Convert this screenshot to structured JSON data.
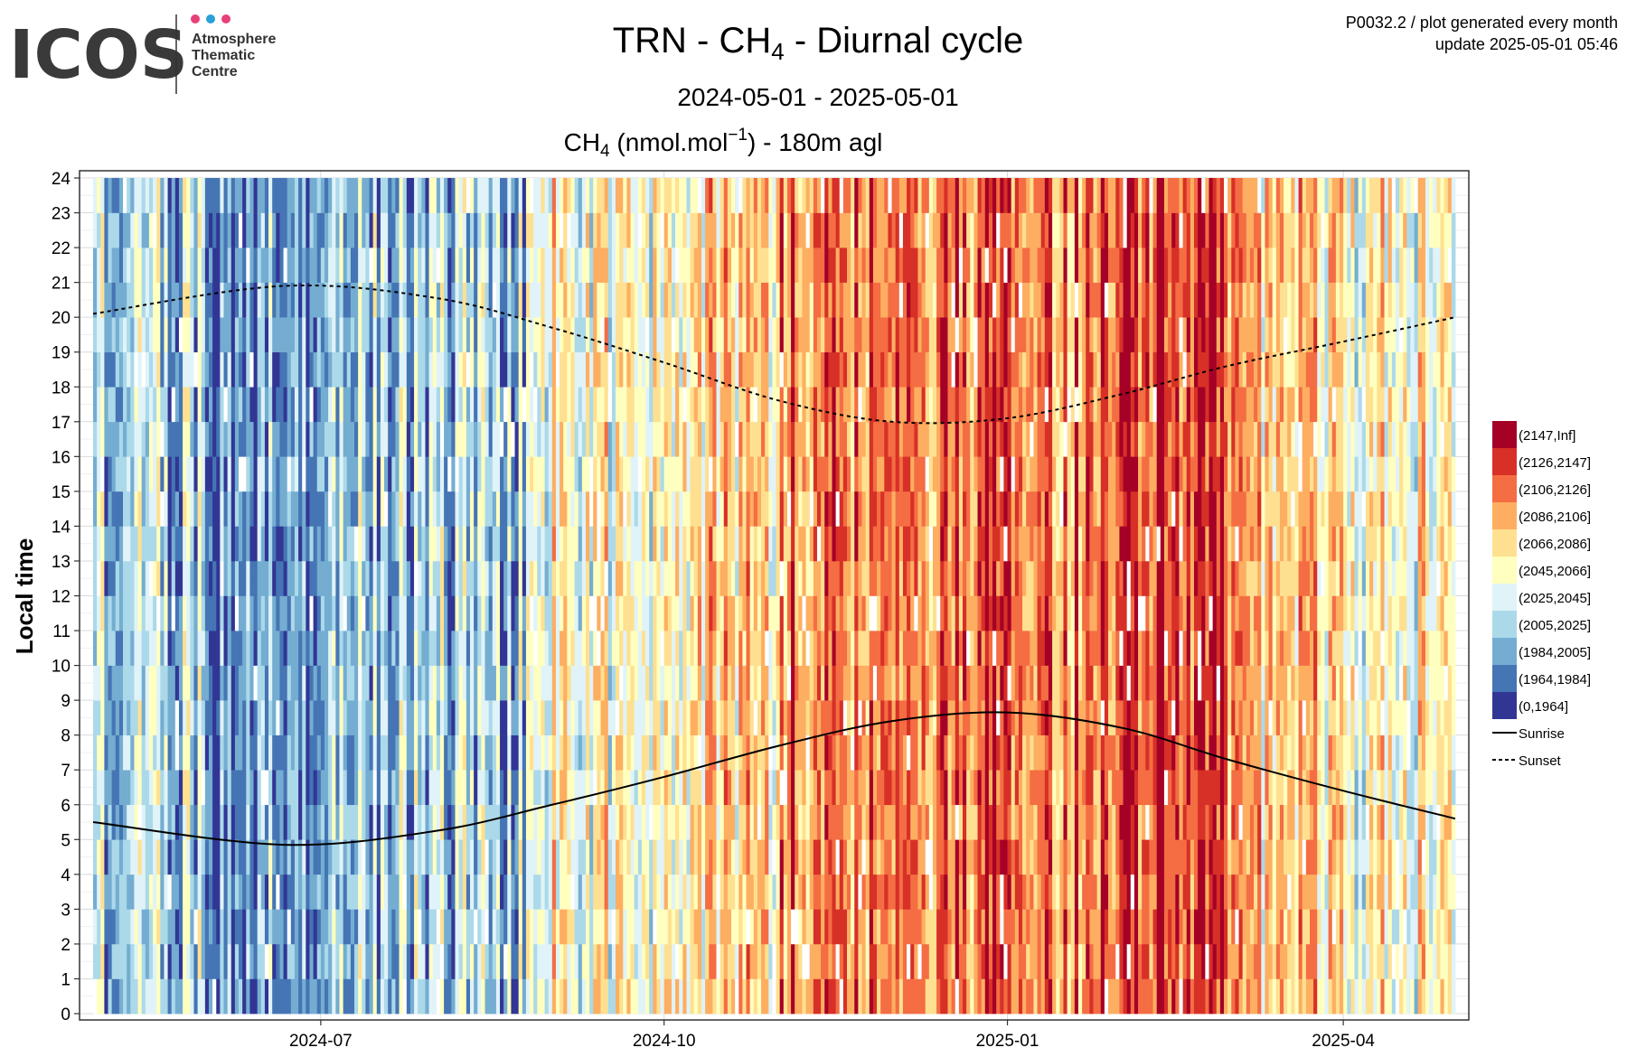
{
  "header": {
    "logo_text": "ICOS",
    "logo_subtitle": [
      "Atmosphere",
      "Thematic",
      "Centre"
    ],
    "logo_dot_colors": [
      "#e8407a",
      "#2a9fd8",
      "#e8407a"
    ],
    "meta_line1": "P0032.2 / plot generated every month",
    "meta_line2": "update  2025-05-01 05:46"
  },
  "chart_data": {
    "type": "heatmap",
    "title_prefix": "TRN - CH",
    "title_sub": "4",
    "title_suffix": " - Diurnal cycle",
    "date_range": "2024-05-01 - 2025-05-01",
    "panel_title_prefix": "CH",
    "panel_title_sub": "4",
    "panel_title_mid": " (nmol.mol",
    "panel_title_sup": "−1",
    "panel_title_suffix": ") - 180m agl",
    "ylabel": "Local time",
    "xlabel": "",
    "x_range": [
      "2024-05-01",
      "2025-05-01"
    ],
    "ylim": [
      0,
      24
    ],
    "x_ticks": [
      {
        "date": "2024-07-01",
        "label": "2024-07"
      },
      {
        "date": "2024-10-01",
        "label": "2024-10"
      },
      {
        "date": "2025-01-01",
        "label": "2025-01"
      },
      {
        "date": "2025-04-01",
        "label": "2025-04"
      }
    ],
    "y_ticks": [
      0,
      1,
      2,
      3,
      4,
      5,
      6,
      7,
      8,
      9,
      10,
      11,
      12,
      13,
      14,
      15,
      16,
      17,
      18,
      19,
      20,
      21,
      22,
      23,
      24
    ],
    "grid": true,
    "legend_position": "right",
    "color_bins": [
      {
        "label": "(2147,Inf]",
        "color": "#a50026"
      },
      {
        "label": "(2126,2147]",
        "color": "#d73027"
      },
      {
        "label": "(2106,2126]",
        "color": "#f46d43"
      },
      {
        "label": "(2086,2106]",
        "color": "#fdae61"
      },
      {
        "label": "(2066,2086]",
        "color": "#fee090"
      },
      {
        "label": "(2045,2066]",
        "color": "#ffffbf"
      },
      {
        "label": "(2025,2045]",
        "color": "#e0f3f8"
      },
      {
        "label": "(2005,2025]",
        "color": "#abd9e9"
      },
      {
        "label": "(1984,2005]",
        "color": "#74add1"
      },
      {
        "label": "(1964,1984]",
        "color": "#4575b4"
      },
      {
        "label": "(0,1964]",
        "color": "#313695"
      }
    ],
    "monthly_dominant_bin_index": [
      {
        "month": "2024-05",
        "bin": 7
      },
      {
        "month": "2024-06",
        "bin": 8
      },
      {
        "month": "2024-07",
        "bin": 7
      },
      {
        "month": "2024-08",
        "bin": 7
      },
      {
        "month": "2024-09",
        "bin": 5
      },
      {
        "month": "2024-10",
        "bin": 4
      },
      {
        "month": "2024-11",
        "bin": 2
      },
      {
        "month": "2024-12",
        "bin": 2
      },
      {
        "month": "2025-01",
        "bin": 2
      },
      {
        "month": "2025-02",
        "bin": 1
      },
      {
        "month": "2025-03",
        "bin": 4
      },
      {
        "month": "2025-04",
        "bin": 5
      }
    ],
    "series": [
      {
        "name": "Sunrise",
        "style": "solid",
        "x": [
          "2024-05-01",
          "2024-06-21",
          "2024-08-01",
          "2024-09-01",
          "2024-10-01",
          "2024-11-01",
          "2024-12-01",
          "2025-01-01",
          "2025-02-01",
          "2025-03-01",
          "2025-04-01",
          "2025-05-01"
        ],
        "y": [
          5.5,
          4.85,
          5.25,
          6.0,
          6.8,
          7.7,
          8.4,
          8.65,
          8.2,
          7.3,
          6.4,
          5.6
        ]
      },
      {
        "name": "Sunset",
        "style": "dashed",
        "x": [
          "2024-05-01",
          "2024-06-21",
          "2024-08-01",
          "2024-09-01",
          "2024-10-01",
          "2024-11-01",
          "2024-12-01",
          "2025-01-01",
          "2025-02-01",
          "2025-03-01",
          "2025-04-01",
          "2025-05-01"
        ],
        "y": [
          20.1,
          20.9,
          20.55,
          19.7,
          18.7,
          17.6,
          17.0,
          17.1,
          17.8,
          18.6,
          19.3,
          20.0
        ]
      }
    ]
  }
}
